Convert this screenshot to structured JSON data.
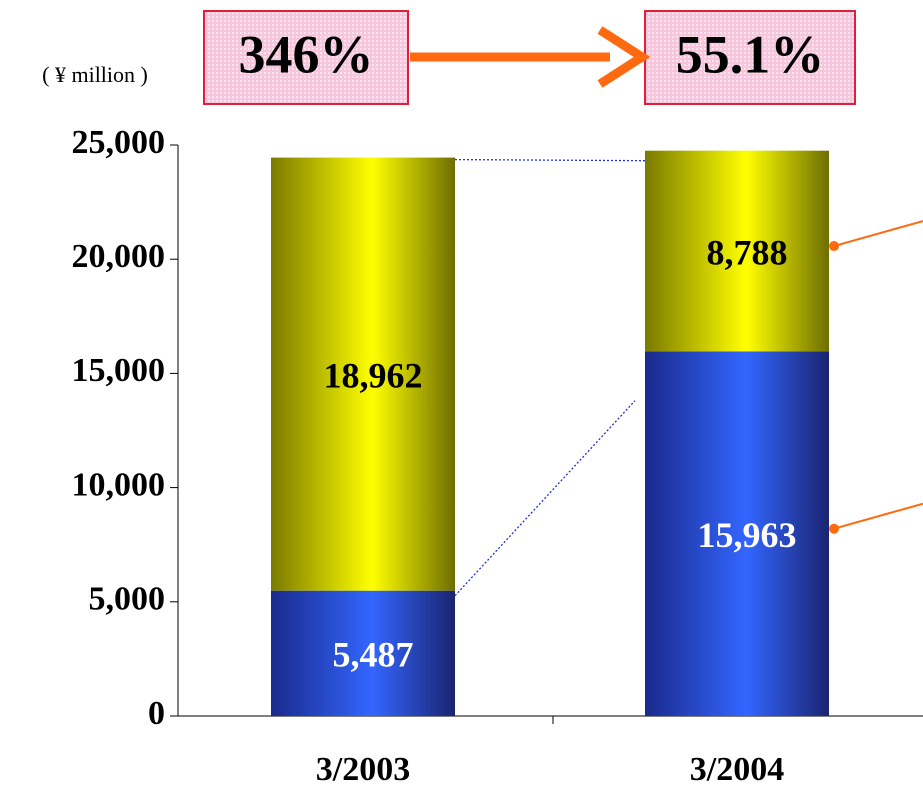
{
  "chart_data": {
    "type": "bar",
    "stacked": true,
    "unit_label": "( ¥ million )",
    "annotations": [
      "346%",
      "55.1%"
    ],
    "categories": [
      "3/2003",
      "3/2004"
    ],
    "series": [
      {
        "color": "#3366ff",
        "values": [
          5487,
          15963
        ],
        "value_labels": [
          "5,487",
          "15,963"
        ]
      },
      {
        "color": "#ffff00",
        "values": [
          18962,
          8788
        ],
        "value_labels": [
          "18,962",
          "8,788"
        ]
      }
    ],
    "ylim": [
      0,
      25000
    ],
    "yticks": [
      0,
      {
        "value": 5000,
        "label": "5,000"
      },
      {
        "value": 10000,
        "label": "10,000"
      },
      {
        "value": 15000,
        "label": "15,000"
      },
      {
        "value": 20000,
        "label": "20,000"
      },
      {
        "value": 25000,
        "label": "25,000"
      }
    ]
  }
}
